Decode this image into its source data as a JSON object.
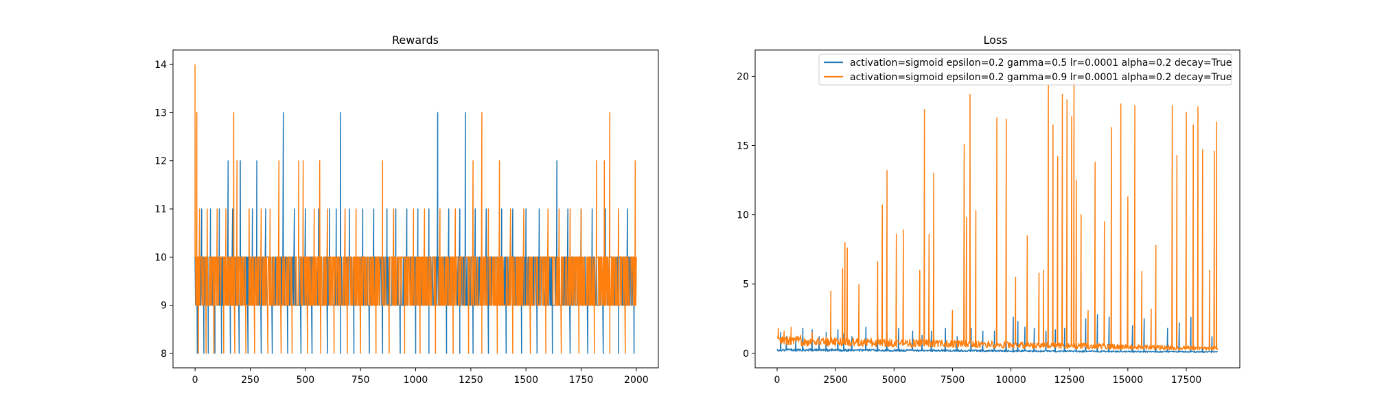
{
  "chart_data": [
    {
      "type": "line",
      "title": "Rewards",
      "xlabel": "",
      "ylabel": "",
      "xlim": [
        -100,
        2100
      ],
      "ylim": [
        7.7,
        14.3
      ],
      "xticks": [
        0,
        250,
        500,
        750,
        1000,
        1250,
        1500,
        1750,
        2000
      ],
      "xtick_labels": [
        "0",
        "250",
        "500",
        "750",
        "1000",
        "1250",
        "1500",
        "1750",
        "2000"
      ],
      "yticks": [
        8,
        9,
        10,
        11,
        12,
        13,
        14
      ],
      "ytick_labels": [
        "8",
        "9",
        "10",
        "11",
        "12",
        "13",
        "14"
      ],
      "grid": false,
      "legend": "none",
      "series": [
        {
          "color": "#1f77b4",
          "x_range": [
            0,
            2000
          ],
          "band": [
            9,
            10
          ],
          "low_spikes": [
            [
              10,
              8
            ],
            [
              40,
              8
            ],
            [
              60,
              8
            ],
            [
              90,
              8
            ],
            [
              120,
              8
            ],
            [
              160,
              8
            ],
            [
              200,
              8
            ],
            [
              240,
              8
            ],
            [
              300,
              8
            ],
            [
              350,
              8
            ],
            [
              420,
              8
            ],
            [
              480,
              8
            ],
            [
              530,
              8
            ],
            [
              600,
              8
            ],
            [
              660,
              8
            ],
            [
              720,
              8
            ],
            [
              790,
              8
            ],
            [
              850,
              8
            ],
            [
              930,
              8
            ],
            [
              1000,
              8
            ],
            [
              1060,
              8
            ],
            [
              1140,
              8
            ],
            [
              1200,
              8
            ],
            [
              1260,
              8
            ],
            [
              1330,
              8
            ],
            [
              1410,
              8
            ],
            [
              1480,
              8
            ],
            [
              1550,
              8
            ],
            [
              1620,
              8
            ],
            [
              1700,
              8
            ],
            [
              1780,
              8
            ],
            [
              1850,
              8
            ],
            [
              1920,
              8
            ],
            [
              1990,
              8
            ]
          ],
          "high_spikes": [
            [
              30,
              11
            ],
            [
              70,
              11
            ],
            [
              110,
              11
            ],
            [
              150,
              12
            ],
            [
              170,
              11
            ],
            [
              205,
              12
            ],
            [
              260,
              11
            ],
            [
              280,
              12
            ],
            [
              320,
              11
            ],
            [
              400,
              13
            ],
            [
              450,
              11
            ],
            [
              500,
              11
            ],
            [
              560,
              11
            ],
            [
              610,
              11
            ],
            [
              640,
              11
            ],
            [
              660,
              13
            ],
            [
              700,
              11
            ],
            [
              760,
              11
            ],
            [
              810,
              11
            ],
            [
              870,
              11
            ],
            [
              910,
              11
            ],
            [
              960,
              11
            ],
            [
              1010,
              11
            ],
            [
              1060,
              11
            ],
            [
              1100,
              13
            ],
            [
              1150,
              11
            ],
            [
              1200,
              11
            ],
            [
              1225,
              13
            ],
            [
              1270,
              11
            ],
            [
              1320,
              11
            ],
            [
              1390,
              11
            ],
            [
              1440,
              11
            ],
            [
              1500,
              11
            ],
            [
              1560,
              11
            ],
            [
              1640,
              12
            ],
            [
              1690,
              11
            ],
            [
              1750,
              11
            ],
            [
              1800,
              11
            ],
            [
              1860,
              11
            ],
            [
              1920,
              11
            ],
            [
              1960,
              11
            ]
          ]
        },
        {
          "color": "#ff7f0e",
          "x_range": [
            0,
            2000
          ],
          "band": [
            9,
            10
          ],
          "low_spikes": [
            [
              15,
              8
            ],
            [
              50,
              8
            ],
            [
              85,
              8
            ],
            [
              130,
              8
            ],
            [
              180,
              8
            ],
            [
              230,
              8
            ],
            [
              270,
              8
            ],
            [
              330,
              8
            ],
            [
              390,
              8
            ],
            [
              440,
              8
            ],
            [
              510,
              8
            ],
            [
              570,
              8
            ],
            [
              630,
              8
            ],
            [
              690,
              8
            ],
            [
              750,
              8
            ],
            [
              820,
              8
            ],
            [
              880,
              8
            ],
            [
              950,
              8
            ],
            [
              1020,
              8
            ],
            [
              1090,
              8
            ],
            [
              1170,
              8
            ],
            [
              1240,
              8
            ],
            [
              1300,
              8
            ],
            [
              1370,
              8
            ],
            [
              1440,
              8
            ],
            [
              1520,
              8
            ],
            [
              1590,
              8
            ],
            [
              1660,
              8
            ],
            [
              1740,
              8
            ],
            [
              1810,
              8
            ],
            [
              1880,
              8
            ],
            [
              1950,
              8
            ]
          ],
          "high_spikes": [
            [
              0,
              14
            ],
            [
              8,
              13
            ],
            [
              20,
              11
            ],
            [
              55,
              11
            ],
            [
              100,
              11
            ],
            [
              140,
              11
            ],
            [
              175,
              13
            ],
            [
              190,
              12
            ],
            [
              245,
              11
            ],
            [
              300,
              11
            ],
            [
              340,
              11
            ],
            [
              380,
              12
            ],
            [
              470,
              12
            ],
            [
              490,
              12
            ],
            [
              540,
              11
            ],
            [
              565,
              12
            ],
            [
              600,
              11
            ],
            [
              680,
              11
            ],
            [
              730,
              11
            ],
            [
              850,
              12
            ],
            [
              900,
              11
            ],
            [
              990,
              11
            ],
            [
              1040,
              11
            ],
            [
              1110,
              11
            ],
            [
              1180,
              11
            ],
            [
              1260,
              12
            ],
            [
              1300,
              13
            ],
            [
              1330,
              11
            ],
            [
              1380,
              12
            ],
            [
              1430,
              11
            ],
            [
              1490,
              11
            ],
            [
              1600,
              11
            ],
            [
              1650,
              11
            ],
            [
              1700,
              11
            ],
            [
              1750,
              11
            ],
            [
              1820,
              12
            ],
            [
              1855,
              12
            ],
            [
              1880,
              13
            ],
            [
              1920,
              11
            ],
            [
              1995,
              12
            ]
          ]
        }
      ]
    },
    {
      "type": "line",
      "title": "Loss",
      "xlabel": "",
      "ylabel": "",
      "xlim": [
        -940,
        19790
      ],
      "ylim": [
        -1.05,
        21.9
      ],
      "xticks": [
        0,
        2500,
        5000,
        7500,
        10000,
        12500,
        15000,
        17500
      ],
      "xtick_labels": [
        "0",
        "2500",
        "5000",
        "7500",
        "10000",
        "12500",
        "15000",
        "17500"
      ],
      "yticks": [
        0,
        5,
        10,
        15,
        20
      ],
      "ytick_labels": [
        "0",
        "5",
        "10",
        "15",
        "20"
      ],
      "grid": false,
      "legend": "top-right",
      "series": [
        {
          "name": "activation=sigmoid epsilon=0.2 gamma=0.5 lr=0.0001 alpha=0.2 decay=True",
          "color": "#1f77b4",
          "x_range": [
            0,
            18850
          ],
          "baseline_start": 0.25,
          "baseline_end": 0.1,
          "spikes": [
            [
              150,
              1.5
            ],
            [
              400,
              1.2
            ],
            [
              800,
              1.1
            ],
            [
              1100,
              1.8
            ],
            [
              1500,
              1.7
            ],
            [
              1800,
              1.2
            ],
            [
              2100,
              1.5
            ],
            [
              2600,
              1.7
            ],
            [
              2850,
              1.4
            ],
            [
              3200,
              1.2
            ],
            [
              3800,
              1.9
            ],
            [
              4300,
              1.4
            ],
            [
              4700,
              1.6
            ],
            [
              5200,
              1.8
            ],
            [
              5800,
              1.6
            ],
            [
              6200,
              1.3
            ],
            [
              6600,
              1.6
            ],
            [
              7200,
              1.8
            ],
            [
              7700,
              1.2
            ],
            [
              8300,
              1.8
            ],
            [
              8800,
              1.6
            ],
            [
              9300,
              1.6
            ],
            [
              9800,
              2.5
            ],
            [
              10100,
              2.6
            ],
            [
              10300,
              2.3
            ],
            [
              10600,
              1.9
            ],
            [
              11000,
              1.8
            ],
            [
              11500,
              1.6
            ],
            [
              11900,
              1.7
            ],
            [
              12300,
              1.8
            ],
            [
              12800,
              1.6
            ],
            [
              13200,
              2.5
            ],
            [
              13700,
              2.8
            ],
            [
              14200,
              2.6
            ],
            [
              14700,
              2.3
            ],
            [
              15200,
              2.0
            ],
            [
              15700,
              2.5
            ],
            [
              16200,
              2.6
            ],
            [
              16700,
              1.8
            ],
            [
              17200,
              2.2
            ],
            [
              17700,
              2.6
            ],
            [
              18200,
              1.4
            ],
            [
              18600,
              1.2
            ]
          ]
        },
        {
          "name": "activation=sigmoid epsilon=0.2 gamma=0.9 lr=0.0001 alpha=0.2 decay=True",
          "color": "#ff7f0e",
          "x_range": [
            0,
            18850
          ],
          "baseline_start": 0.9,
          "baseline_end": 0.35,
          "spikes": [
            [
              50,
              1.8
            ],
            [
              300,
              1.6
            ],
            [
              600,
              1.9
            ],
            [
              1000,
              1.3
            ],
            [
              1500,
              1.5
            ],
            [
              2300,
              4.5
            ],
            [
              2800,
              6.1
            ],
            [
              2900,
              8.0
            ],
            [
              3000,
              7.6
            ],
            [
              3500,
              5.0
            ],
            [
              4300,
              6.6
            ],
            [
              4500,
              10.7
            ],
            [
              4700,
              13.2
            ],
            [
              5100,
              8.6
            ],
            [
              5400,
              8.9
            ],
            [
              6100,
              6.0
            ],
            [
              6300,
              17.6
            ],
            [
              6500,
              8.6
            ],
            [
              6700,
              13.0
            ],
            [
              7500,
              3.1
            ],
            [
              8000,
              15.1
            ],
            [
              8100,
              9.8
            ],
            [
              8250,
              18.7
            ],
            [
              8500,
              10.3
            ],
            [
              9400,
              17.0
            ],
            [
              9800,
              16.9
            ],
            [
              10200,
              5.5
            ],
            [
              10700,
              8.5
            ],
            [
              11200,
              5.8
            ],
            [
              11400,
              6.0
            ],
            [
              11600,
              19.4
            ],
            [
              11800,
              16.5
            ],
            [
              12000,
              14.2
            ],
            [
              12200,
              18.7
            ],
            [
              12400,
              18.3
            ],
            [
              12600,
              17.1
            ],
            [
              12700,
              19.6
            ],
            [
              12800,
              12.5
            ],
            [
              13000,
              10.0
            ],
            [
              13300,
              3.1
            ],
            [
              13600,
              13.8
            ],
            [
              14000,
              9.5
            ],
            [
              14300,
              16.3
            ],
            [
              14700,
              18.0
            ],
            [
              15000,
              11.3
            ],
            [
              15300,
              17.9
            ],
            [
              15600,
              5.9
            ],
            [
              16000,
              3.2
            ],
            [
              16200,
              7.8
            ],
            [
              16900,
              17.9
            ],
            [
              17100,
              14.3
            ],
            [
              17500,
              17.4
            ],
            [
              17800,
              16.5
            ],
            [
              18000,
              17.8
            ],
            [
              18200,
              14.7
            ],
            [
              18500,
              6.0
            ],
            [
              18700,
              14.6
            ],
            [
              18800,
              16.7
            ]
          ]
        }
      ]
    }
  ]
}
